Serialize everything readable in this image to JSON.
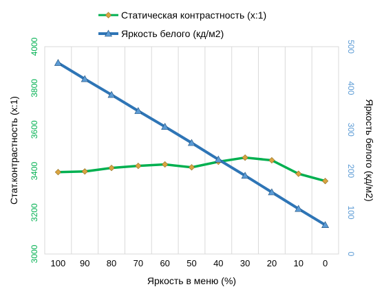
{
  "chart_data": {
    "type": "line",
    "x": [
      100,
      90,
      80,
      70,
      60,
      50,
      40,
      30,
      20,
      10,
      0
    ],
    "x_tick_labels": [
      "100",
      "90",
      "80",
      "70",
      "60",
      "50",
      "40",
      "30",
      "20",
      "10",
      "0"
    ],
    "xlabel": "Яркость в меню (%)",
    "ylabel_left": "Стат.контрастность  (х:1)",
    "ylabel_right": "Яркость белого (кд/м2)",
    "ylim_left": [
      3000,
      4000
    ],
    "ylim_right": [
      0,
      500
    ],
    "y_ticks_left": [
      "3000",
      "3200",
      "3400",
      "3600",
      "3800",
      "4000"
    ],
    "y_ticks_right": [
      "0",
      "100",
      "200",
      "300",
      "400",
      "500"
    ],
    "grid": "vertical",
    "legend_position": "top",
    "series": [
      {
        "name": "Статическая контрастность (х:1)",
        "axis": "left",
        "color": "#00b050",
        "marker_color": "#d9a441",
        "marker": "diamond",
        "values": [
          3395,
          3398,
          3415,
          3425,
          3432,
          3418,
          3445,
          3465,
          3452,
          3387,
          3352
        ]
      },
      {
        "name": "Яркость белого (кд/м2)",
        "axis": "right",
        "color": "#2e75b6",
        "marker_color": "#5b9bd5",
        "marker": "triangle",
        "values": [
          461,
          422,
          384,
          345,
          307,
          268,
          228,
          189,
          149,
          109,
          70
        ]
      }
    ]
  }
}
